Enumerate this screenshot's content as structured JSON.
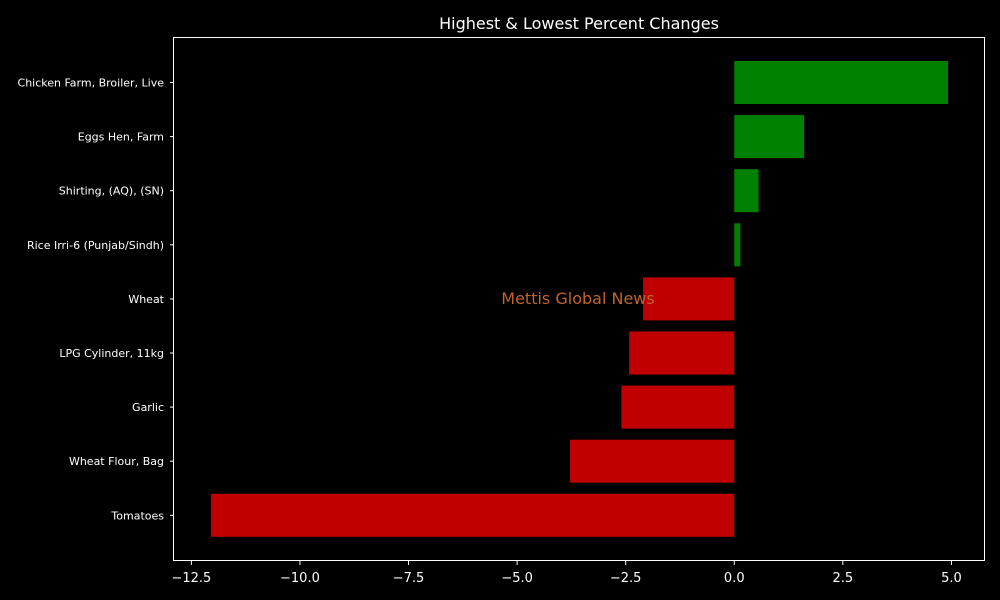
{
  "chart_data": {
    "type": "bar",
    "orientation": "horizontal",
    "title": "Highest & Lowest Percent Changes",
    "xlabel": "",
    "ylabel": "",
    "categories": [
      "Chicken Farm, Broiler, Live",
      "Eggs Hen, Farm",
      "Shirting, (AQ), (SN)",
      "Rice Irri-6 (Punjab/Sindh)",
      "Wheat",
      "LPG Cylinder, 11kg",
      "Garlic",
      "Wheat Flour, Bag",
      "Tomatoes"
    ],
    "values": [
      4.92,
      1.61,
      0.56,
      0.14,
      -2.1,
      -2.42,
      -2.6,
      -3.78,
      -12.05
    ],
    "xlim": [
      -12.9,
      5.75
    ],
    "xticks": [
      -12.5,
      -10.0,
      -7.5,
      -5.0,
      -2.5,
      0.0,
      2.5,
      5.0
    ],
    "xtick_labels": [
      "−12.5",
      "−10.0",
      "−7.5",
      "−5.0",
      "−2.5",
      "0.0",
      "2.5",
      "5.0"
    ],
    "grid": false,
    "colors": {
      "positive": "#008000",
      "negative": "#c00000",
      "background": "#000000",
      "axes": "#ffffff"
    }
  },
  "watermark": {
    "text": "Mettis Global News",
    "color": "#c0642a"
  }
}
